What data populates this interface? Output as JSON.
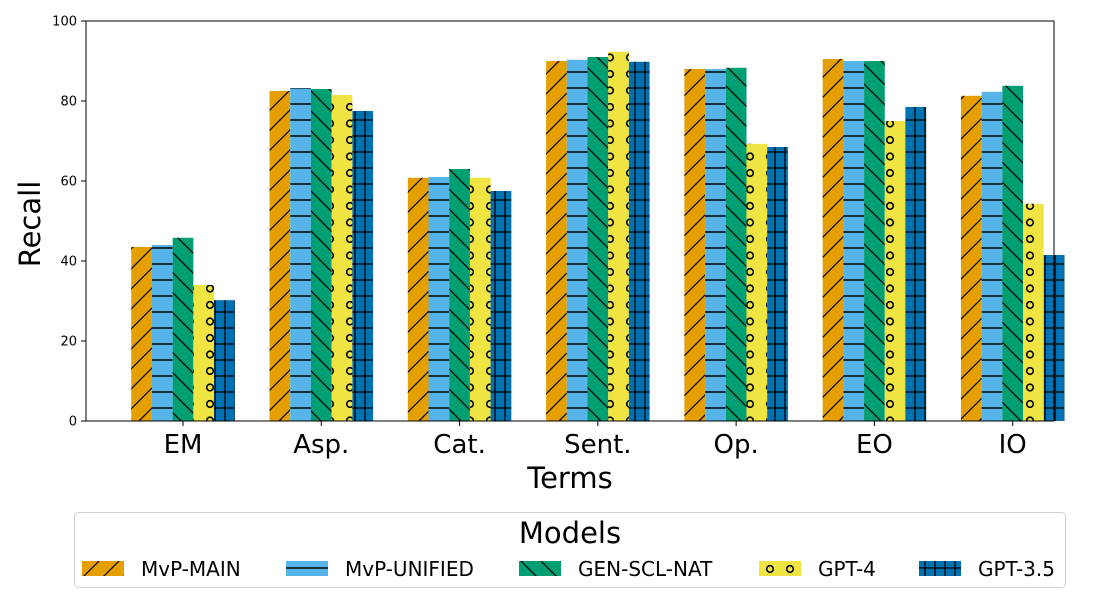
{
  "chart_data": {
    "type": "bar",
    "xlabel": "Terms",
    "ylabel": "Recall",
    "ylim": [
      0,
      100
    ],
    "yticks": [
      "0",
      "20",
      "40",
      "60",
      "80",
      "100"
    ],
    "categories": [
      "EM",
      "Asp.",
      "Cat.",
      "Sent.",
      "Op.",
      "EO",
      "IO"
    ],
    "legend": {
      "title": "Models",
      "placement": "bottom-center"
    },
    "grid": false,
    "series": [
      {
        "name": "MvP-MAIN",
        "color": "#E69F00",
        "hatch": "forward-slash",
        "values": [
          43.5,
          82.5,
          60.8,
          90.0,
          88.0,
          90.5,
          81.3
        ]
      },
      {
        "name": "MvP-UNIFIED",
        "color": "#56B4E9",
        "hatch": "horizontal-lines",
        "values": [
          44.0,
          83.2,
          61.0,
          90.3,
          88.0,
          90.0,
          82.3
        ]
      },
      {
        "name": "GEN-SCL-NAT",
        "color": "#009E73",
        "hatch": "back-slash",
        "values": [
          45.8,
          83.0,
          63.0,
          91.0,
          88.3,
          90.0,
          83.8
        ]
      },
      {
        "name": "GPT-4",
        "color": "#F0E442",
        "hatch": "circles",
        "values": [
          34.0,
          81.5,
          60.8,
          92.3,
          69.3,
          75.0,
          54.3
        ]
      },
      {
        "name": "GPT-3.5",
        "color": "#0072B2",
        "hatch": "grid",
        "values": [
          30.2,
          77.5,
          57.5,
          89.8,
          68.5,
          78.5,
          41.5
        ]
      }
    ]
  }
}
